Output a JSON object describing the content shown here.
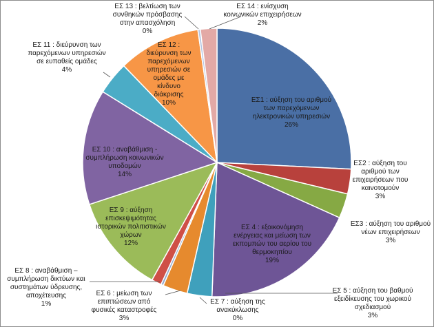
{
  "chart_data": {
    "type": "pie",
    "title": "",
    "slices": [
      {
        "id": "es1",
        "lines": [
          "ΕΣ1 : αύξηση του αριθμού",
          "των παρεχόμενων",
          "ηλεκτρονικών υπηρεσιών"
        ],
        "pct_label": "26%",
        "value": 26,
        "color": "#4A6FA5"
      },
      {
        "id": "es2",
        "lines": [
          "ΕΣ2 : αύξηση του",
          "αριθμού των",
          "επιχειρήσεων που",
          "καινοτομούν"
        ],
        "pct_label": "3%",
        "value": 3,
        "color": "#B8413C"
      },
      {
        "id": "es3",
        "lines": [
          "ΕΣ3 : αύξηση του αριθμού",
          "νέων επιχειρήσεων"
        ],
        "pct_label": "3%",
        "value": 3,
        "color": "#86A944"
      },
      {
        "id": "es4",
        "lines": [
          "ΕΣ 4 : εξοικονόμηση",
          "ενέργειας και μείωση των",
          "εκπομπών του αερίου του",
          "θερμοκηπίου"
        ],
        "pct_label": "19%",
        "value": 19,
        "color": "#6E5596"
      },
      {
        "id": "es5",
        "lines": [
          "ΕΣ 5 : αύξηση του βαθμού",
          "εξειδίκευσης του χωρικού",
          "σχεδιασμού"
        ],
        "pct_label": "3%",
        "value": 3,
        "color": "#3FA0BC"
      },
      {
        "id": "es6",
        "lines": [
          "ΕΣ 6 : μείωση των",
          "επιπτώσεων από",
          "φυσικές καταστροφές"
        ],
        "pct_label": "3%",
        "value": 3,
        "color": "#E68A2E"
      },
      {
        "id": "es7",
        "lines": [
          "ΕΣ 7 : αύξηση της",
          "ανακύκλωσης"
        ],
        "pct_label": "0%",
        "value": 0.3,
        "color": "#93A9CF"
      },
      {
        "id": "es8",
        "lines": [
          "ΕΣ 8 : αναβάθμιση –",
          "συμπλήρωση δικτύων και",
          "συστημάτων ύδρευσης,",
          "αποχέτευσης"
        ],
        "pct_label": "1%",
        "value": 1.2,
        "color": "#CF4F47"
      },
      {
        "id": "es9",
        "lines": [
          "ΕΣ 9 : αύξηση",
          "επισκεψιμότητας",
          "ιστορικών πολιτιστικών",
          "χώρων"
        ],
        "pct_label": "12%",
        "value": 12,
        "color": "#9BBB59"
      },
      {
        "id": "es10",
        "lines": [
          "ΕΣ 10 : αναβάθμιση -",
          "συμπλήρωση κοινωνικών",
          "υποδομών"
        ],
        "pct_label": "14%",
        "value": 14,
        "color": "#8064A2"
      },
      {
        "id": "es11",
        "lines": [
          "ΕΣ 11 : διεύρυνση των",
          "παρεχόμενων υπηρεσιών",
          "σε ευπαθείς ομάδες"
        ],
        "pct_label": "4%",
        "value": 4,
        "color": "#4BACC6"
      },
      {
        "id": "es12",
        "lines": [
          "ΕΣ 12 :",
          "διεύρυνση των",
          "παρεχόμενων",
          "υπηρεσιών σε",
          "ομάδες με",
          "κίνδυνο",
          "διάκρισης"
        ],
        "pct_label": "10%",
        "value": 10,
        "color": "#F79646"
      },
      {
        "id": "es13",
        "lines": [
          "ΕΣ 13 : βελτίωση των",
          "συνθηκών πρόσβασης",
          "στην απασχόληση"
        ],
        "pct_label": "0%",
        "value": 0.3,
        "color": "#B5C6E3"
      },
      {
        "id": "es14",
        "lines": [
          "ΕΣ 14 : ενίσχυση",
          "κοινωνικών επιχειρήσεων"
        ],
        "pct_label": "2%",
        "value": 2,
        "color": "#E3A9A6"
      }
    ]
  }
}
